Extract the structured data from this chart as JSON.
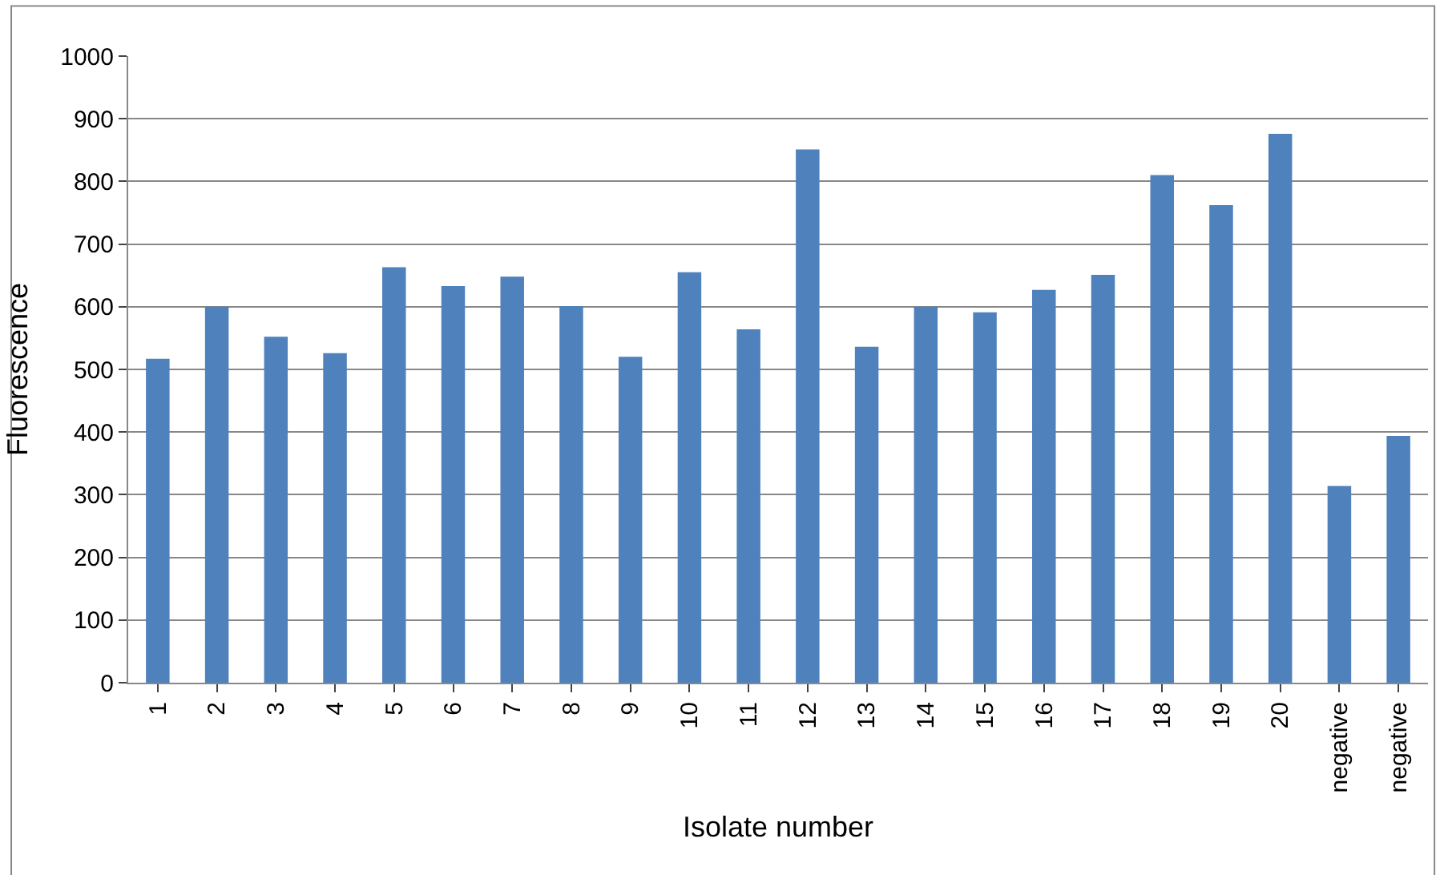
{
  "chart_data": {
    "type": "bar",
    "xlabel": "Isolate number",
    "ylabel": "Fluorescence",
    "categories": [
      "1",
      "2",
      "3",
      "4",
      "5",
      "6",
      "7",
      "8",
      "9",
      "10",
      "11",
      "12",
      "13",
      "14",
      "15",
      "16",
      "17",
      "18",
      "19",
      "20",
      "negative",
      "negative"
    ],
    "values": [
      517,
      600,
      552,
      526,
      663,
      633,
      648,
      601,
      520,
      655,
      564,
      851,
      536,
      600,
      591,
      627,
      651,
      810,
      762,
      876,
      314,
      394
    ],
    "color": "#4f81bd",
    "ylim": [
      0,
      1000
    ],
    "yticks": [
      0,
      100,
      200,
      300,
      400,
      500,
      600,
      700,
      800,
      900,
      1000
    ],
    "grid": "y"
  }
}
